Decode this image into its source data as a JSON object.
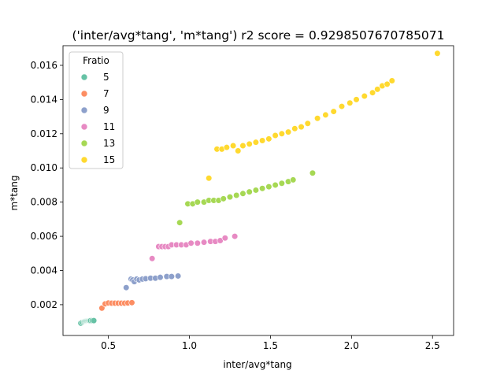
{
  "chart_data": {
    "type": "scatter",
    "title": "('inter/avg*tang', 'm*tang') r2 score = 0.9298507670785071",
    "xlabel": "inter/avg*tang",
    "ylabel": "m*tang",
    "xlim": [
      0.22,
      2.63
    ],
    "ylim": [
      0.0002,
      0.01715
    ],
    "xticks": [
      0.5,
      1.0,
      1.5,
      2.0,
      2.5
    ],
    "xtick_labels": [
      "0.5",
      "1.0",
      "1.5",
      "2.0",
      "2.5"
    ],
    "yticks": [
      0.002,
      0.004,
      0.006,
      0.008,
      0.01,
      0.012,
      0.014,
      0.016
    ],
    "ytick_labels": [
      "0.002",
      "0.004",
      "0.006",
      "0.008",
      "0.010",
      "0.012",
      "0.014",
      "0.016"
    ],
    "grid": false,
    "legend": {
      "title": "Fratio",
      "placement": "upper-left"
    },
    "series": [
      {
        "name": "5",
        "color": "#66c2a5",
        "x": [
          0.33,
          0.34,
          0.35,
          0.355,
          0.36,
          0.365,
          0.37,
          0.375,
          0.38,
          0.385,
          0.39,
          0.4,
          0.41
        ],
        "y": [
          0.00092,
          0.00097,
          0.00101,
          0.00103,
          0.00104,
          0.00105,
          0.00105,
          0.00106,
          0.00106,
          0.00106,
          0.00107,
          0.00107,
          0.00107
        ]
      },
      {
        "name": "7",
        "color": "#fc8d62",
        "x": [
          0.46,
          0.48,
          0.5,
          0.52,
          0.54,
          0.56,
          0.58,
          0.6,
          0.62,
          0.645
        ],
        "y": [
          0.0018,
          0.00205,
          0.0021,
          0.00209,
          0.00209,
          0.00209,
          0.00209,
          0.00209,
          0.0021,
          0.00212
        ]
      },
      {
        "name": "9",
        "color": "#8da0cb",
        "x": [
          0.61,
          0.64,
          0.65,
          0.66,
          0.675,
          0.69,
          0.71,
          0.73,
          0.76,
          0.79,
          0.82,
          0.86,
          0.89,
          0.93
        ],
        "y": [
          0.003,
          0.0035,
          0.00345,
          0.00335,
          0.0035,
          0.00345,
          0.0035,
          0.00352,
          0.00355,
          0.00355,
          0.0036,
          0.00365,
          0.00365,
          0.00368
        ]
      },
      {
        "name": "11",
        "color": "#e78ac3",
        "x": [
          0.77,
          0.81,
          0.83,
          0.85,
          0.87,
          0.89,
          0.92,
          0.95,
          0.98,
          1.01,
          1.05,
          1.09,
          1.13,
          1.16,
          1.19,
          1.22,
          1.28
        ],
        "y": [
          0.0047,
          0.0054,
          0.0054,
          0.0054,
          0.0054,
          0.0055,
          0.0055,
          0.0055,
          0.0055,
          0.0056,
          0.0056,
          0.00565,
          0.0057,
          0.0057,
          0.00575,
          0.0059,
          0.006
        ]
      },
      {
        "name": "13",
        "color": "#a6d854",
        "x": [
          0.94,
          0.99,
          1.02,
          1.05,
          1.09,
          1.12,
          1.15,
          1.18,
          1.21,
          1.25,
          1.29,
          1.33,
          1.37,
          1.41,
          1.45,
          1.49,
          1.53,
          1.57,
          1.61,
          1.64,
          1.76
        ],
        "y": [
          0.0068,
          0.0079,
          0.0079,
          0.008,
          0.008,
          0.0081,
          0.0081,
          0.0081,
          0.0082,
          0.0083,
          0.0084,
          0.0085,
          0.0086,
          0.0087,
          0.0088,
          0.0089,
          0.009,
          0.0091,
          0.0092,
          0.0093,
          0.0097
        ]
      },
      {
        "name": "15",
        "color": "#ffd92f",
        "x": [
          1.12,
          1.17,
          1.2,
          1.23,
          1.27,
          1.3,
          1.33,
          1.37,
          1.41,
          1.45,
          1.49,
          1.53,
          1.57,
          1.61,
          1.65,
          1.69,
          1.73,
          1.79,
          1.84,
          1.89,
          1.94,
          1.99,
          2.03,
          2.08,
          2.13,
          2.16,
          2.19,
          2.22,
          2.25,
          2.53
        ],
        "y": [
          0.0094,
          0.0111,
          0.0111,
          0.0112,
          0.0113,
          0.011,
          0.0113,
          0.0114,
          0.0115,
          0.0116,
          0.0117,
          0.0119,
          0.012,
          0.0121,
          0.0123,
          0.0124,
          0.0126,
          0.0129,
          0.0131,
          0.0133,
          0.0136,
          0.0138,
          0.014,
          0.0142,
          0.0144,
          0.0146,
          0.0148,
          0.0149,
          0.0151,
          0.0167
        ]
      }
    ]
  }
}
